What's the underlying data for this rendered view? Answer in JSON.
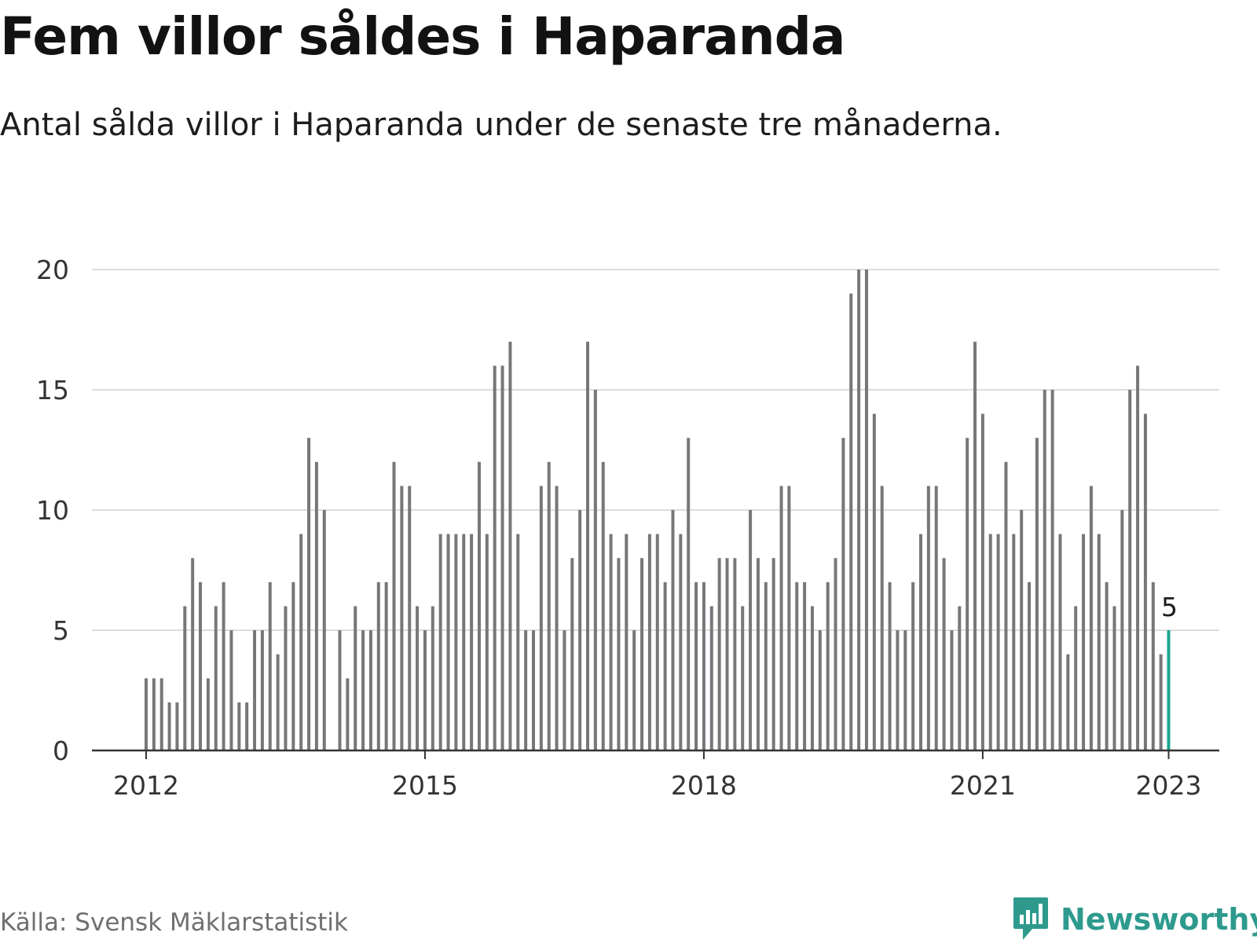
{
  "header": {
    "title": "Fem villor såldes i Haparanda",
    "subtitle": "Antal sålda villor i Haparanda under de senaste tre månaderna."
  },
  "footer": {
    "source": "Källa: Svensk Mäklarstatistik",
    "brand": "Newsworthy",
    "brand_icon": "newsworthy-logo-icon"
  },
  "colors": {
    "bar": "#77777b",
    "highlight": "#1aa58f",
    "grid": "#dcdcdc",
    "axis": "#333333",
    "brand": "#2e9a8e"
  },
  "chart_data": {
    "type": "bar",
    "title": "Fem villor såldes i Haparanda",
    "xlabel": "",
    "ylabel": "",
    "ylim": [
      0,
      20
    ],
    "y_ticks": [
      "0",
      "5",
      "10",
      "15",
      "20"
    ],
    "x_ticks": [
      {
        "label": "2012",
        "index": 0
      },
      {
        "label": "2015",
        "index": 36
      },
      {
        "label": "2018",
        "index": 72
      },
      {
        "label": "2021",
        "index": 108
      },
      {
        "label": "2023",
        "index": 132
      }
    ],
    "start": "2012-01",
    "grid": true,
    "values": [
      3,
      3,
      3,
      2,
      2,
      6,
      8,
      7,
      3,
      6,
      7,
      5,
      2,
      2,
      5,
      5,
      7,
      4,
      6,
      7,
      9,
      13,
      12,
      10,
      null,
      5,
      3,
      6,
      5,
      5,
      7,
      7,
      12,
      11,
      11,
      6,
      5,
      6,
      9,
      9,
      9,
      9,
      9,
      12,
      9,
      16,
      16,
      17,
      9,
      5,
      5,
      11,
      12,
      11,
      5,
      8,
      10,
      17,
      15,
      12,
      9,
      8,
      9,
      5,
      8,
      9,
      9,
      7,
      10,
      9,
      13,
      7,
      7,
      6,
      8,
      8,
      8,
      6,
      10,
      8,
      7,
      8,
      11,
      11,
      7,
      7,
      6,
      5,
      7,
      8,
      13,
      19,
      20,
      20,
      14,
      11,
      7,
      5,
      5,
      7,
      9,
      11,
      11,
      8,
      5,
      6,
      13,
      17,
      14,
      9,
      9,
      12,
      9,
      10,
      7,
      13,
      15,
      15,
      9,
      4,
      6,
      9,
      11,
      9,
      7,
      6,
      10,
      15,
      16,
      14,
      7,
      4,
      5
    ],
    "highlight_index": 132,
    "highlight_label": "5"
  }
}
